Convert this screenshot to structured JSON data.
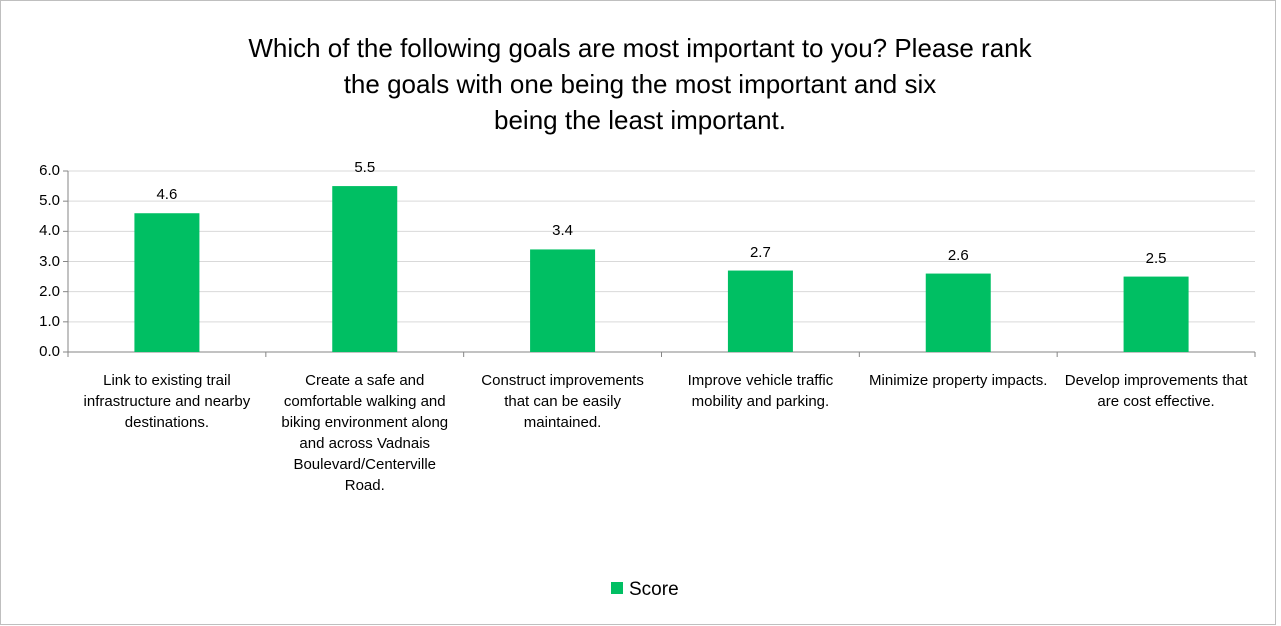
{
  "chart_data": {
    "type": "bar",
    "title": "Which of the following goals are most important to you? Please rank\nthe goals with one being the most important and six\nbeing the least important.",
    "categories": [
      "Link to existing trail infrastructure and nearby destinations.",
      "Create a safe and comfortable walking and biking environment along and across Vadnais Boulevard/Centerville Road.",
      "Construct improvements that can be easily maintained.",
      "Improve vehicle traffic mobility and parking.",
      "Minimize property impacts.",
      "Develop improvements that are cost effective."
    ],
    "series": [
      {
        "name": "Score",
        "color": "#00bf63",
        "values": [
          4.6,
          5.5,
          3.4,
          2.7,
          2.6,
          2.5
        ]
      }
    ],
    "ylim": [
      0,
      6
    ],
    "yticks": [
      {
        "value": 0,
        "label": "0.0"
      },
      {
        "value": 1,
        "label": "1.0"
      },
      {
        "value": 2,
        "label": "2.0"
      },
      {
        "value": 3,
        "label": "3.0"
      },
      {
        "value": 4,
        "label": "4.0"
      },
      {
        "value": 5,
        "label": "5.0"
      },
      {
        "value": 6,
        "label": "6.0"
      }
    ],
    "grid": true,
    "legend": "bottom"
  }
}
